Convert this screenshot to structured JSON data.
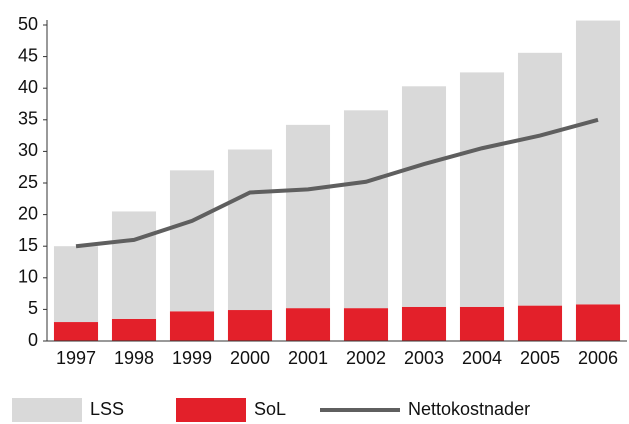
{
  "chart_data": {
    "type": "bar",
    "categories": [
      "1997",
      "1998",
      "1999",
      "2000",
      "2001",
      "2002",
      "2003",
      "2004",
      "2005",
      "2006"
    ],
    "series": [
      {
        "name": "LSS",
        "color": "#d9d9d9",
        "type": "bar",
        "values": [
          12,
          17,
          22.3,
          25.4,
          29,
          31.3,
          34.9,
          37.1,
          40,
          44.9
        ]
      },
      {
        "name": "SoL",
        "color": "#e3202a",
        "type": "bar",
        "values": [
          3,
          3.5,
          4.7,
          4.9,
          5.2,
          5.2,
          5.4,
          5.4,
          5.6,
          5.8
        ]
      },
      {
        "name": "Nettokostnader",
        "color": "#5f5f5f",
        "type": "line",
        "values": [
          15,
          16,
          19,
          23.5,
          24,
          25.2,
          28,
          30.5,
          32.5,
          35
        ]
      }
    ],
    "ylim": [
      0,
      50
    ],
    "yticks": [
      0,
      5,
      10,
      15,
      20,
      25,
      30,
      35,
      40,
      45,
      50
    ],
    "legend": "bottom"
  }
}
